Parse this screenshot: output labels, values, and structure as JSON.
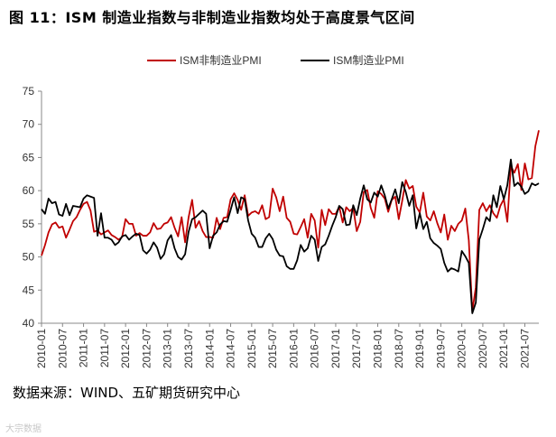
{
  "title": "图 11：ISM 制造业指数与非制造业指数均处于高度景气区间",
  "source": "数据来源：WIND、五矿期货研究中心",
  "watermark": "大宗数据",
  "chart_data": {
    "type": "line",
    "title": "图 11：ISM 制造业指数与非制造业指数均处于高度景气区间",
    "xlabel": "",
    "ylabel": "",
    "ylim": [
      40,
      75
    ],
    "yticks": [
      40,
      45,
      50,
      55,
      60,
      65,
      70,
      75
    ],
    "x_start": "2010-01",
    "x_end": "2021-11",
    "x_tick_labels": [
      "2010-01",
      "2010-07",
      "2011-01",
      "2011-07",
      "2012-01",
      "2012-07",
      "2013-01",
      "2013-07",
      "2014-01",
      "2014-07",
      "2015-01",
      "2015-07",
      "2016-01",
      "2016-07",
      "2017-01",
      "2017-07",
      "2018-01",
      "2018-07",
      "2019-01",
      "2019-07",
      "2020-01",
      "2020-07",
      "2021-01",
      "2021-07"
    ],
    "legend_position": "top-center",
    "series": [
      {
        "name": "ISM非制造业PMI",
        "color": "#c00000",
        "values": [
          50.2,
          51.8,
          53.7,
          54.9,
          55.2,
          54.4,
          54.6,
          52.9,
          54.1,
          55.4,
          56.0,
          57.1,
          58.0,
          58.3,
          57.0,
          53.8,
          54.0,
          53.4,
          53.7,
          54.0,
          53.3,
          53.0,
          52.6,
          53.0,
          55.7,
          55.0,
          55.0,
          53.2,
          53.6,
          53.2,
          53.2,
          53.7,
          55.1,
          54.2,
          54.3,
          55.0,
          55.2,
          56.0,
          54.4,
          53.1,
          56.0,
          52.2,
          56.0,
          58.6,
          54.4,
          55.4,
          53.9,
          53.0,
          53.0,
          52.9,
          55.9,
          54.2,
          55.9,
          56.0,
          58.7,
          59.6,
          58.6,
          57.1,
          59.3,
          56.2,
          56.7,
          56.9,
          56.5,
          57.8,
          55.7,
          56.0,
          60.3,
          59.0,
          56.9,
          59.1,
          55.9,
          55.3,
          53.5,
          53.4,
          54.5,
          55.7,
          52.9,
          56.5,
          55.5,
          51.4,
          57.1,
          54.8,
          57.2,
          56.5,
          56.5,
          57.6,
          55.2,
          57.5,
          56.9,
          57.4,
          53.9,
          55.3,
          59.8,
          60.1,
          57.4,
          55.9,
          59.9,
          59.5,
          58.8,
          56.8,
          58.6,
          59.1,
          55.7,
          58.5,
          61.6,
          60.3,
          60.7,
          57.6,
          56.7,
          59.7,
          56.1,
          55.5,
          56.9,
          55.1,
          53.7,
          56.4,
          52.6,
          54.7,
          53.9,
          55.0,
          55.5,
          57.3,
          52.5,
          41.8,
          45.4,
          57.1,
          58.1,
          56.9,
          57.8,
          56.6,
          55.9,
          57.7,
          58.7,
          55.3,
          63.7,
          62.7,
          64.0,
          60.1,
          64.1,
          61.7,
          61.9,
          66.7,
          69.1
        ]
      },
      {
        "name": "ISM制造业PMI",
        "color": "#000000",
        "values": [
          57.2,
          56.5,
          58.8,
          58.1,
          58.3,
          56.4,
          56.2,
          58.0,
          56.3,
          57.7,
          57.6,
          57.5,
          58.8,
          59.3,
          59.1,
          58.9,
          53.2,
          56.6,
          52.9,
          52.9,
          52.6,
          51.8,
          52.2,
          53.1,
          53.3,
          52.6,
          53.1,
          53.5,
          53.3,
          51.0,
          50.5,
          51.1,
          52.2,
          51.4,
          49.7,
          50.4,
          52.5,
          53.3,
          51.3,
          50.0,
          49.6,
          50.4,
          53.8,
          55.7,
          56.0,
          56.5,
          57.0,
          56.5,
          51.3,
          53.2,
          53.7,
          54.9,
          55.4,
          55.3,
          57.1,
          59.0,
          56.6,
          59.0,
          58.7,
          55.5,
          53.5,
          52.9,
          51.5,
          51.5,
          52.8,
          53.5,
          52.7,
          51.1,
          50.2,
          50.1,
          48.6,
          48.2,
          48.2,
          49.5,
          51.8,
          50.8,
          51.3,
          53.2,
          52.6,
          49.4,
          51.5,
          51.9,
          53.2,
          54.7,
          56.0,
          57.7,
          57.2,
          54.8,
          54.9,
          57.8,
          56.3,
          58.8,
          60.8,
          58.7,
          58.2,
          59.7,
          59.1,
          60.8,
          59.3,
          57.3,
          58.7,
          60.2,
          58.1,
          61.3,
          59.8,
          57.7,
          59.3,
          54.3,
          56.6,
          54.2,
          55.3,
          52.8,
          52.1,
          51.7,
          51.2,
          49.1,
          47.8,
          48.3,
          48.1,
          47.8,
          50.9,
          50.1,
          49.1,
          41.5,
          43.1,
          52.6,
          54.2,
          56.0,
          55.4,
          59.3,
          57.5,
          60.7,
          58.7,
          60.8,
          64.7,
          60.7,
          61.2,
          60.6,
          59.5,
          59.9,
          61.1,
          60.8,
          61.1
        ]
      }
    ]
  }
}
